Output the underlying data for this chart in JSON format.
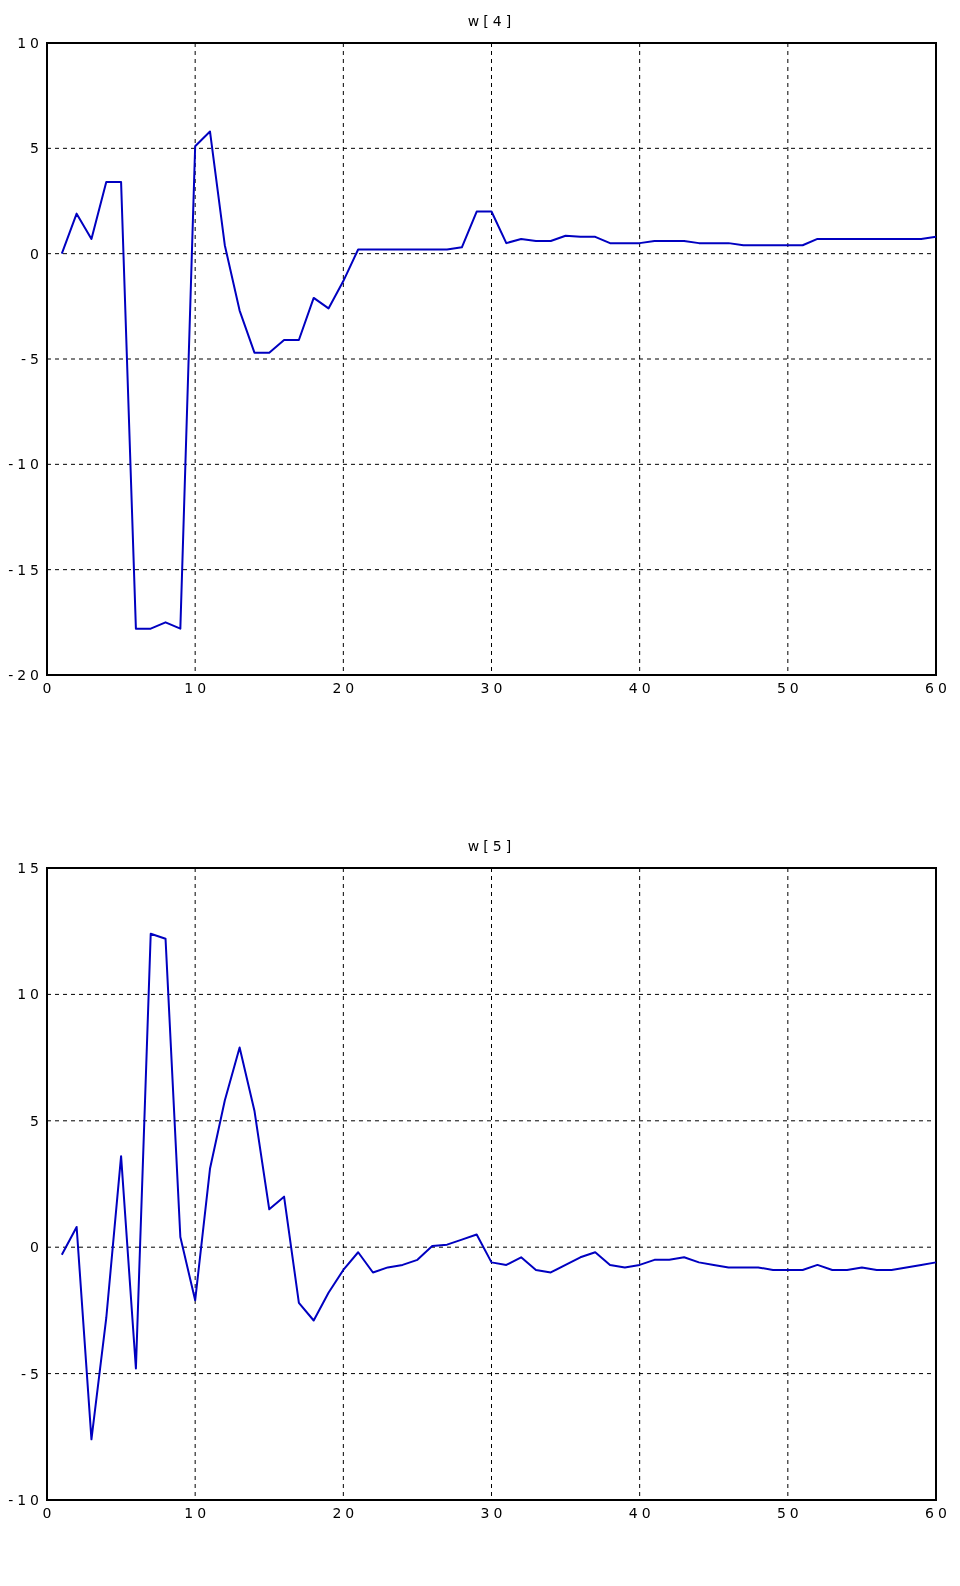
{
  "chart_data": [
    {
      "type": "line",
      "title": "w[4]",
      "x": [
        1,
        2,
        3,
        4,
        5,
        6,
        7,
        8,
        9,
        10,
        11,
        12,
        13,
        14,
        15,
        16,
        17,
        18,
        19,
        20,
        21,
        22,
        23,
        24,
        25,
        26,
        27,
        28,
        29,
        30,
        31,
        32,
        33,
        34,
        35,
        36,
        37,
        38,
        39,
        40,
        41,
        42,
        43,
        44,
        45,
        46,
        47,
        48,
        49,
        50,
        51,
        52,
        53,
        54,
        55,
        56,
        57,
        58,
        59,
        60
      ],
      "series": [
        {
          "color": "#0000c0",
          "values": [
            0,
            1.9,
            0.7,
            3.4,
            3.4,
            -17.8,
            -17.8,
            -17.5,
            -17.8,
            5.1,
            5.8,
            0.4,
            -2.7,
            -4.7,
            -4.7,
            -4.1,
            -4.1,
            -2.1,
            -2.6,
            -1.3,
            0.2,
            0.2,
            0.2,
            0.2,
            0.2,
            0.2,
            0.2,
            0.3,
            2.0,
            2.0,
            0.5,
            0.7,
            0.6,
            0.6,
            0.85,
            0.8,
            0.8,
            0.5,
            0.5,
            0.5,
            0.6,
            0.6,
            0.6,
            0.5,
            0.5,
            0.5,
            0.4,
            0.4,
            0.4,
            0.4,
            0.4,
            0.7,
            0.7,
            0.7,
            0.7,
            0.7,
            0.7,
            0.7,
            0.7,
            0.8
          ]
        }
      ],
      "xlim": [
        0,
        60
      ],
      "xticks": [
        0,
        10,
        20,
        30,
        40,
        50,
        60
      ],
      "ylim": [
        -20,
        10
      ],
      "yticks": [
        -20,
        -15,
        -10,
        -5,
        0,
        5,
        10
      ],
      "grid": true,
      "line_style": "solid"
    },
    {
      "type": "line",
      "title": "w[5]",
      "x": [
        1,
        2,
        3,
        4,
        5,
        6,
        7,
        8,
        9,
        10,
        11,
        12,
        13,
        14,
        15,
        16,
        17,
        18,
        19,
        20,
        21,
        22,
        23,
        24,
        25,
        26,
        27,
        28,
        29,
        30,
        31,
        32,
        33,
        34,
        35,
        36,
        37,
        38,
        39,
        40,
        41,
        42,
        43,
        44,
        45,
        46,
        47,
        48,
        49,
        50,
        51,
        52,
        53,
        54,
        55,
        56,
        57,
        58,
        59,
        60
      ],
      "series": [
        {
          "color": "#0000c0",
          "values": [
            -0.3,
            0.8,
            -7.6,
            -2.8,
            3.6,
            -4.8,
            12.4,
            12.2,
            0.4,
            -2.1,
            3.1,
            5.8,
            7.9,
            5.4,
            1.5,
            2.0,
            -2.2,
            -2.9,
            -1.8,
            -0.9,
            -0.2,
            -1.0,
            -0.8,
            -0.7,
            -0.5,
            0.05,
            0.1,
            0.3,
            0.5,
            -0.6,
            -0.7,
            -0.4,
            -0.9,
            -1.0,
            -0.7,
            -0.4,
            -0.2,
            -0.7,
            -0.8,
            -0.7,
            -0.5,
            -0.5,
            -0.4,
            -0.6,
            -0.7,
            -0.8,
            -0.8,
            -0.8,
            -0.9,
            -0.9,
            -0.9,
            -0.7,
            -0.9,
            -0.9,
            -0.8,
            -0.9,
            -0.9,
            -0.8,
            -0.7,
            -0.6
          ]
        }
      ],
      "xlim": [
        0,
        60
      ],
      "xticks": [
        0,
        10,
        20,
        30,
        40,
        50,
        60
      ],
      "ylim": [
        -10,
        15
      ],
      "yticks": [
        -10,
        -5,
        0,
        5,
        10,
        15
      ],
      "grid": true,
      "line_style": "solid"
    }
  ]
}
